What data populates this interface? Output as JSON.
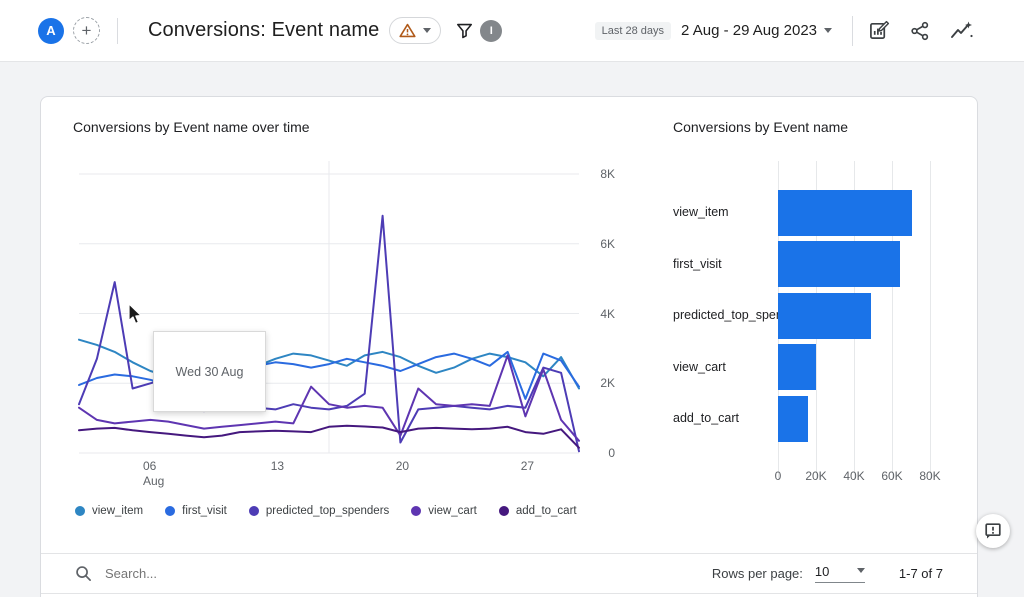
{
  "header": {
    "avatar_letter": "A",
    "add_label": "+",
    "title": "Conversions: Event name",
    "date_preset_label": "Last 28 days",
    "date_range": "2 Aug - 29 Aug 2023",
    "info_letter": "I",
    "icons": [
      "warning-icon",
      "filter-funnel-icon",
      "edit-chart-icon",
      "share-icon",
      "insights-icon"
    ]
  },
  "colors": {
    "accent_blue": "#1a73e8",
    "warning_orange": "#b05a1a",
    "grid_gray": "#e6e8ea",
    "text_secondary": "#5f6368"
  },
  "tooltip": {
    "text": "Wed 30 Aug"
  },
  "table_controls": {
    "search_placeholder": "Search...",
    "rows_per_page_label": "Rows per page:",
    "rows_per_page_value": "10",
    "pagination": "1-7 of 7"
  },
  "chart_data": [
    {
      "type": "line",
      "title": "Conversions by Event name over time",
      "x_days": [
        "2 Aug",
        "3 Aug",
        "4 Aug",
        "5 Aug",
        "6 Aug",
        "7 Aug",
        "8 Aug",
        "9 Aug",
        "10 Aug",
        "11 Aug",
        "12 Aug",
        "13 Aug",
        "14 Aug",
        "15 Aug",
        "16 Aug",
        "17 Aug",
        "18 Aug",
        "19 Aug",
        "20 Aug",
        "21 Aug",
        "22 Aug",
        "23 Aug",
        "24 Aug",
        "25 Aug",
        "26 Aug",
        "27 Aug",
        "28 Aug",
        "29 Aug",
        "30 Aug"
      ],
      "ylim": [
        0,
        8000
      ],
      "yticks": [
        {
          "label": "8K",
          "value": 8000
        },
        {
          "label": "6K",
          "value": 6000
        },
        {
          "label": "4K",
          "value": 4000
        },
        {
          "label": "2K",
          "value": 2000
        },
        {
          "label": "0",
          "value": 0
        }
      ],
      "xticks": [
        {
          "index": 4,
          "label": "06",
          "sub": "Aug"
        },
        {
          "index": 11,
          "label": "13"
        },
        {
          "index": 18,
          "label": "20"
        },
        {
          "index": 25,
          "label": "27"
        }
      ],
      "grid": true,
      "legend_position": "bottom",
      "series": [
        {
          "name": "view_item",
          "color": "#2e86c3",
          "values": [
            3250,
            3100,
            2900,
            2600,
            2350,
            2200,
            2100,
            1400,
            1250,
            2300,
            2500,
            2700,
            2850,
            2800,
            2650,
            2500,
            2800,
            2900,
            2750,
            2500,
            2300,
            2450,
            2700,
            2850,
            2750,
            2600,
            2200,
            2750,
            1850
          ]
        },
        {
          "name": "first_visit",
          "color": "#2a6be0",
          "values": [
            1950,
            2150,
            2250,
            2200,
            2100,
            1950,
            1500,
            1300,
            2100,
            2350,
            2500,
            2600,
            2550,
            2450,
            2550,
            2700,
            2600,
            2500,
            2350,
            2550,
            2750,
            2850,
            2700,
            2500,
            2900,
            1550,
            2850,
            2650,
            1900
          ]
        },
        {
          "name": "predicted_top_spenders",
          "color": "#4d3cb5",
          "values": [
            1400,
            2700,
            4900,
            1850,
            2000,
            2150,
            1300,
            1200,
            1350,
            1400,
            1300,
            1250,
            1400,
            1300,
            1250,
            1350,
            1700,
            6800,
            300,
            1250,
            1300,
            1350,
            1300,
            1250,
            1350,
            1300,
            2450,
            2300,
            50
          ]
        },
        {
          "name": "view_cart",
          "color": "#5e35b1",
          "values": [
            1300,
            950,
            850,
            900,
            950,
            900,
            800,
            700,
            750,
            800,
            850,
            900,
            850,
            1900,
            1400,
            1300,
            1350,
            1300,
            500,
            1850,
            1400,
            1350,
            1400,
            1350,
            2800,
            1050,
            2400,
            950,
            350
          ]
        },
        {
          "name": "add_to_cart",
          "color": "#45187e",
          "values": [
            650,
            700,
            720,
            650,
            600,
            550,
            500,
            450,
            500,
            600,
            620,
            640,
            620,
            600,
            750,
            780,
            760,
            730,
            600,
            700,
            720,
            700,
            680,
            700,
            750,
            600,
            550,
            680,
            150
          ]
        }
      ]
    },
    {
      "type": "bar",
      "title": "Conversions by Event name",
      "orientation": "horizontal",
      "categories": [
        "view_item",
        "first_visit",
        "predicted_top_spenders",
        "view_cart",
        "add_to_cart"
      ],
      "values": [
        70500,
        64000,
        49000,
        20000,
        16000
      ],
      "bar_color": "#1a73e8",
      "xlim": [
        0,
        80000
      ],
      "xticks": [
        "0",
        "20K",
        "40K",
        "60K",
        "80K"
      ],
      "grid": true
    }
  ]
}
